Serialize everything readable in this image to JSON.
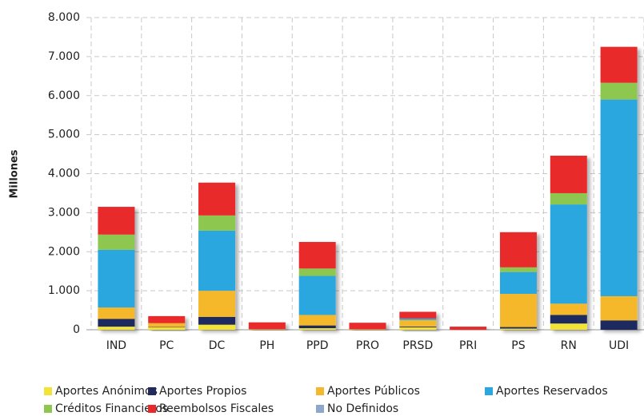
{
  "chart_data": {
    "type": "stacked_bar",
    "y_label": "Millones",
    "categories": [
      "IND",
      "PC",
      "DC",
      "PH",
      "PPD",
      "PRO",
      "PRSD",
      "PRI",
      "PS",
      "RN",
      "UDI"
    ],
    "series": [
      {
        "name": "Aportes Anónimos",
        "color": "#f2e335",
        "values": [
          80,
          60,
          130,
          10,
          40,
          10,
          60,
          0,
          30,
          160,
          0
        ]
      },
      {
        "name": "Aportes Propios",
        "color": "#1f2a5e",
        "values": [
          200,
          10,
          200,
          0,
          70,
          0,
          20,
          0,
          40,
          220,
          240
        ]
      },
      {
        "name": "Aportes Públicos",
        "color": "#f5b82b",
        "values": [
          290,
          100,
          670,
          0,
          270,
          0,
          170,
          0,
          850,
          290,
          620
        ]
      },
      {
        "name": "Aportes Reservados",
        "color": "#2ba7df",
        "values": [
          1480,
          0,
          1540,
          0,
          1000,
          0,
          40,
          0,
          560,
          2540,
          5040
        ]
      },
      {
        "name": "Créditos Financieros",
        "color": "#8dc74f",
        "values": [
          390,
          0,
          390,
          0,
          190,
          0,
          0,
          0,
          120,
          290,
          430
        ]
      },
      {
        "name": "Reembolsos Fiscales",
        "color": "#e8292b",
        "values": [
          710,
          180,
          840,
          180,
          680,
          170,
          170,
          80,
          900,
          960,
          920
        ]
      },
      {
        "name": "No Definidos",
        "color": "#8fa5c9",
        "values": [
          0,
          0,
          0,
          0,
          0,
          0,
          0,
          0,
          0,
          0,
          0
        ]
      }
    ],
    "ylim": [
      0,
      8000
    ],
    "yticks": [
      0,
      {
        "value": 1000,
        "label": "1.000"
      },
      {
        "value": 2000,
        "label": "2.000"
      },
      {
        "value": 3000,
        "label": "3.000"
      },
      {
        "value": 4000,
        "label": "4.000"
      },
      {
        "value": 5000,
        "label": "5.000"
      },
      {
        "value": 6000,
        "label": "6.000"
      },
      {
        "value": 7000,
        "label": "7.000"
      },
      {
        "value": 8000,
        "label": "8.000"
      }
    ],
    "grid": true
  }
}
